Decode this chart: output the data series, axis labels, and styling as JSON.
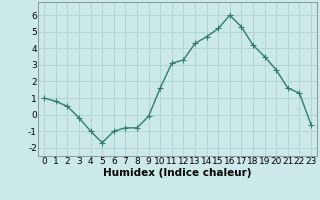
{
  "x": [
    0,
    1,
    2,
    3,
    4,
    5,
    6,
    7,
    8,
    9,
    10,
    11,
    12,
    13,
    14,
    15,
    16,
    17,
    18,
    19,
    20,
    21,
    22,
    23
  ],
  "y": [
    1.0,
    0.8,
    0.5,
    -0.2,
    -1.0,
    -1.7,
    -1.0,
    -0.8,
    -0.8,
    -0.1,
    1.6,
    3.1,
    3.3,
    4.3,
    4.7,
    5.2,
    6.0,
    5.3,
    4.2,
    3.5,
    2.7,
    1.6,
    1.3,
    -0.6
  ],
  "line_color": "#2e7d6e",
  "marker": "D",
  "marker_size": 2.5,
  "bg_color": "#cce9e9",
  "grid_color": "#b0d0d0",
  "xlabel": "Humidex (Indice chaleur)",
  "xlim": [
    -0.5,
    23.5
  ],
  "ylim": [
    -2.5,
    6.8
  ],
  "yticks": [
    -2,
    -1,
    0,
    1,
    2,
    3,
    4,
    5,
    6
  ],
  "xticks": [
    0,
    1,
    2,
    3,
    4,
    5,
    6,
    7,
    8,
    9,
    10,
    11,
    12,
    13,
    14,
    15,
    16,
    17,
    18,
    19,
    20,
    21,
    22,
    23
  ],
  "tick_fontsize": 6.5,
  "xlabel_fontsize": 7.5,
  "line_width": 1.0
}
